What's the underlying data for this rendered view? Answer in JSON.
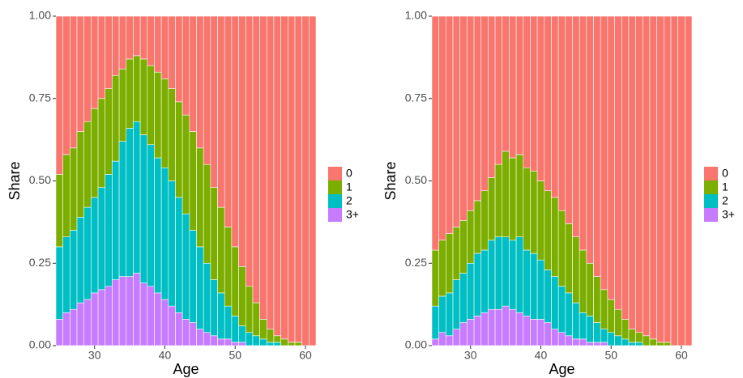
{
  "chart_data": [
    {
      "type": "bar",
      "stacked": true,
      "xlabel": "Age",
      "ylabel": "Share",
      "x": [
        25,
        26,
        27,
        28,
        29,
        30,
        31,
        32,
        33,
        34,
        35,
        36,
        37,
        38,
        39,
        40,
        41,
        42,
        43,
        44,
        45,
        46,
        47,
        48,
        49,
        50,
        51,
        52,
        53,
        54,
        55,
        56,
        57,
        58,
        59,
        60,
        61
      ],
      "xlim": [
        24.5,
        61.5
      ],
      "xticks": [
        30,
        40,
        50,
        60
      ],
      "ylim": [
        0,
        1
      ],
      "yticks": [
        {
          "value": 0,
          "label": "0.00"
        },
        {
          "value": 0.25,
          "label": "0.25"
        },
        {
          "value": 0.5,
          "label": "0.50"
        },
        {
          "value": 0.75,
          "label": "0.75"
        },
        {
          "value": 1,
          "label": "1.00"
        }
      ],
      "series": [
        {
          "name": "0",
          "color": "#F8766D",
          "values": [
            0.48,
            0.42,
            0.4,
            0.35,
            0.32,
            0.28,
            0.25,
            0.22,
            0.18,
            0.16,
            0.13,
            0.12,
            0.13,
            0.15,
            0.17,
            0.19,
            0.22,
            0.26,
            0.3,
            0.35,
            0.4,
            0.45,
            0.52,
            0.58,
            0.64,
            0.7,
            0.76,
            0.82,
            0.87,
            0.92,
            0.95,
            0.97,
            0.98,
            0.99,
            0.99,
            1,
            1
          ]
        },
        {
          "name": "1",
          "color": "#7CAE00",
          "values": [
            0.22,
            0.25,
            0.25,
            0.26,
            0.26,
            0.27,
            0.27,
            0.26,
            0.26,
            0.22,
            0.21,
            0.2,
            0.23,
            0.24,
            0.26,
            0.27,
            0.28,
            0.29,
            0.3,
            0.3,
            0.3,
            0.3,
            0.28,
            0.26,
            0.24,
            0.21,
            0.18,
            0.14,
            0.1,
            0.06,
            0.04,
            0.02,
            0.02,
            0.01,
            0.01,
            0,
            0
          ]
        },
        {
          "name": "2",
          "color": "#00BFC4",
          "values": [
            0.22,
            0.23,
            0.24,
            0.26,
            0.28,
            0.29,
            0.31,
            0.34,
            0.36,
            0.41,
            0.45,
            0.46,
            0.45,
            0.43,
            0.41,
            0.4,
            0.38,
            0.35,
            0.32,
            0.28,
            0.25,
            0.21,
            0.17,
            0.14,
            0.1,
            0.08,
            0.05,
            0.04,
            0.03,
            0.02,
            0.01,
            0.01,
            0,
            0,
            0,
            0,
            0
          ]
        },
        {
          "name": "3+",
          "color": "#C77CFF",
          "values": [
            0.08,
            0.1,
            0.11,
            0.13,
            0.14,
            0.16,
            0.17,
            0.18,
            0.2,
            0.21,
            0.21,
            0.22,
            0.19,
            0.18,
            0.16,
            0.14,
            0.12,
            0.1,
            0.08,
            0.07,
            0.05,
            0.04,
            0.03,
            0.02,
            0.02,
            0.01,
            0.01,
            0,
            0,
            0,
            0,
            0,
            0,
            0,
            0,
            0,
            0
          ]
        }
      ]
    },
    {
      "type": "bar",
      "stacked": true,
      "xlabel": "Age",
      "ylabel": "Share",
      "x": [
        25,
        26,
        27,
        28,
        29,
        30,
        31,
        32,
        33,
        34,
        35,
        36,
        37,
        38,
        39,
        40,
        41,
        42,
        43,
        44,
        45,
        46,
        47,
        48,
        49,
        50,
        51,
        52,
        53,
        54,
        55,
        56,
        57,
        58,
        59,
        60,
        61
      ],
      "xlim": [
        24.5,
        61.5
      ],
      "xticks": [
        30,
        40,
        50,
        60
      ],
      "ylim": [
        0,
        1
      ],
      "yticks": [
        {
          "value": 0,
          "label": "0.00"
        },
        {
          "value": 0.25,
          "label": "0.25"
        },
        {
          "value": 0.5,
          "label": "0.50"
        },
        {
          "value": 0.75,
          "label": "0.75"
        },
        {
          "value": 1,
          "label": "1.00"
        }
      ],
      "series": [
        {
          "name": "0",
          "color": "#F8766D",
          "values": [
            0.71,
            0.68,
            0.66,
            0.64,
            0.62,
            0.59,
            0.56,
            0.53,
            0.49,
            0.45,
            0.41,
            0.43,
            0.42,
            0.46,
            0.47,
            0.5,
            0.53,
            0.55,
            0.59,
            0.63,
            0.67,
            0.71,
            0.75,
            0.79,
            0.83,
            0.86,
            0.89,
            0.92,
            0.95,
            0.96,
            0.97,
            0.98,
            0.99,
            0.99,
            1,
            1,
            1
          ]
        },
        {
          "name": "1",
          "color": "#7CAE00",
          "values": [
            0.17,
            0.17,
            0.18,
            0.16,
            0.16,
            0.16,
            0.16,
            0.18,
            0.19,
            0.22,
            0.26,
            0.25,
            0.25,
            0.25,
            0.25,
            0.24,
            0.24,
            0.24,
            0.23,
            0.21,
            0.2,
            0.19,
            0.16,
            0.14,
            0.12,
            0.1,
            0.08,
            0.06,
            0.04,
            0.03,
            0.03,
            0.02,
            0.01,
            0.01,
            0,
            0,
            0
          ]
        },
        {
          "name": "2",
          "color": "#00BFC4",
          "values": [
            0.1,
            0.11,
            0.13,
            0.15,
            0.15,
            0.17,
            0.19,
            0.19,
            0.21,
            0.22,
            0.21,
            0.21,
            0.23,
            0.2,
            0.2,
            0.18,
            0.16,
            0.16,
            0.14,
            0.13,
            0.11,
            0.08,
            0.08,
            0.06,
            0.04,
            0.04,
            0.03,
            0.02,
            0.01,
            0.01,
            0,
            0,
            0,
            0,
            0,
            0,
            0
          ]
        },
        {
          "name": "3+",
          "color": "#C77CFF",
          "values": [
            0.02,
            0.04,
            0.03,
            0.05,
            0.07,
            0.08,
            0.09,
            0.1,
            0.11,
            0.11,
            0.12,
            0.11,
            0.1,
            0.09,
            0.08,
            0.08,
            0.07,
            0.05,
            0.04,
            0.03,
            0.02,
            0.02,
            0.01,
            0.01,
            0.01,
            0,
            0,
            0,
            0,
            0,
            0,
            0,
            0,
            0,
            0,
            0,
            0
          ]
        }
      ]
    }
  ]
}
